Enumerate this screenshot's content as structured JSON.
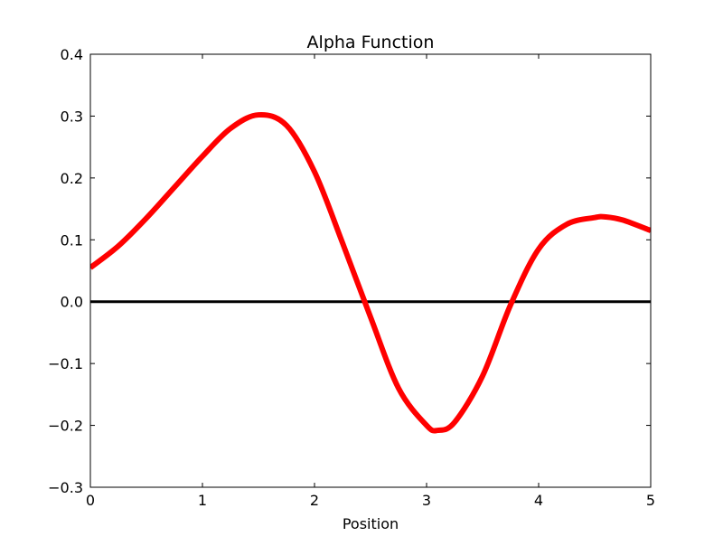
{
  "chart_data": {
    "type": "line",
    "title": "Alpha Function",
    "xlabel": "Position",
    "ylabel": "",
    "xlim": [
      0,
      5
    ],
    "ylim": [
      -0.3,
      0.4
    ],
    "xticks": [
      0,
      1,
      2,
      3,
      4,
      5
    ],
    "xtick_labels": [
      "0",
      "1",
      "2",
      "3",
      "4",
      "5"
    ],
    "yticks": [
      -0.3,
      -0.2,
      -0.1,
      0.0,
      0.1,
      0.2,
      0.3,
      0.4
    ],
    "ytick_labels": [
      "−0.3",
      "−0.2",
      "−0.1",
      "0.0",
      "0.1",
      "0.2",
      "0.3",
      "0.4"
    ],
    "grid": false,
    "legend": "none",
    "series": [
      {
        "color": "#ff0000",
        "x": [
          0,
          0.25,
          0.5,
          0.75,
          1.0,
          1.25,
          1.5,
          1.75,
          2.0,
          2.25,
          2.5,
          2.75,
          3.0,
          3.1,
          3.25,
          3.5,
          3.75,
          4.0,
          4.25,
          4.5,
          4.6,
          4.75,
          5.0
        ],
        "y": [
          0.055,
          0.09,
          0.135,
          0.185,
          0.235,
          0.28,
          0.302,
          0.285,
          0.21,
          0.095,
          -0.025,
          -0.14,
          -0.2,
          -0.208,
          -0.195,
          -0.12,
          -0.005,
          0.085,
          0.125,
          0.136,
          0.137,
          0.132,
          0.115
        ]
      }
    ],
    "reference_lines": [
      {
        "y": 0.0,
        "color": "#000000"
      }
    ]
  }
}
